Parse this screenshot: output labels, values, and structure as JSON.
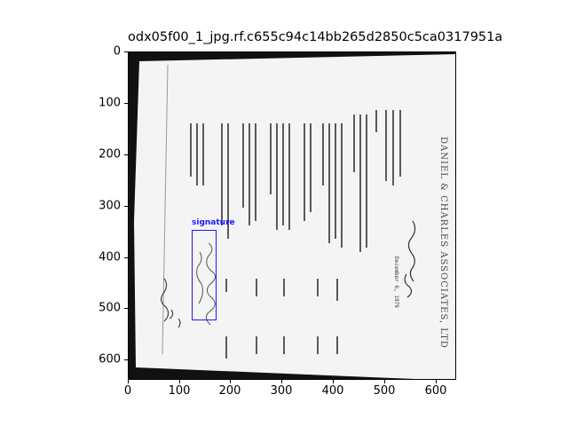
{
  "figure": {
    "title": "odx05f00_1_jpg.rf.c655c94c14bb265d2850c5ca0317951a",
    "x_ticks": [
      "0",
      "100",
      "200",
      "300",
      "400",
      "500",
      "600"
    ],
    "y_ticks": [
      "0",
      "100",
      "200",
      "300",
      "400",
      "500",
      "600"
    ]
  },
  "annotation": {
    "label": "signature",
    "color": "#1a1aff"
  },
  "document": {
    "letterhead": "DANIEL & CHARLES ASSOCIATES, LTD",
    "date": "December 6, 1979",
    "body_text_color": "#222222",
    "paper_color": "#f4f4f4"
  }
}
